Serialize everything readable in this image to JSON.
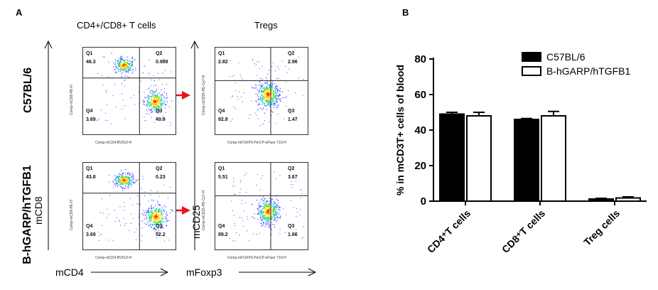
{
  "panelA": {
    "letter": "A",
    "col1_title": "CD4+/CD8+ T cells",
    "col2_title": "Tregs",
    "row1_label": "C57BL/6",
    "row2_label": "B-hGARP/hTGFB1",
    "x_marker_left": "mCD4",
    "x_marker_right": "mFoxp3",
    "y_marker_left": "mCD8",
    "y_marker_right": "mCD25",
    "plots": [
      {
        "xaxis": "Comp-mCD4-BV510-H",
        "yaxis": "Comp-mCD8-PE-H",
        "q1": {
          "label": "Q1",
          "value": "46.3"
        },
        "q2": {
          "label": "Q2",
          "value": "0.989"
        },
        "q3": {
          "label": "Q3",
          "value": "49.9"
        },
        "q4": {
          "label": "Q4",
          "value": "3.69"
        }
      },
      {
        "xaxis": "Comp-mFOXP3-PerCP-eFluor 710-H",
        "yaxis": "Comp-mCD25-PE-Cy7-H",
        "q1": {
          "label": "Q1",
          "value": "2.82"
        },
        "q2": {
          "label": "Q2",
          "value": "2.96"
        },
        "q3": {
          "label": "Q3",
          "value": "1.47"
        },
        "q4": {
          "label": "Q4",
          "value": "92.8"
        }
      },
      {
        "xaxis": "Comp-mCD4-BV510-H",
        "yaxis": "Comp-mCD8-PE-H",
        "q1": {
          "label": "Q1",
          "value": "43.8"
        },
        "q2": {
          "label": "Q2",
          "value": "0.23"
        },
        "q3": {
          "label": "Q3",
          "value": "52.2"
        },
        "q4": {
          "label": "Q4",
          "value": "3.69"
        }
      },
      {
        "xaxis": "Comp-mFOXP3-PerCP-eFluor 710-H",
        "yaxis": "Comp-mCD25-PE-Cy7-H",
        "q1": {
          "label": "Q1",
          "value": "5.51"
        },
        "q2": {
          "label": "Q2",
          "value": "3.67"
        },
        "q3": {
          "label": "Q3",
          "value": "1.66"
        },
        "q4": {
          "label": "Q4",
          "value": "89.2"
        }
      }
    ],
    "arrow_color": "#e8141a"
  },
  "panelB": {
    "letter": "B"
  },
  "chart_data": {
    "type": "bar",
    "categories": [
      "CD4⁺T cells",
      "CD8⁺T cells",
      "Treg cells"
    ],
    "series": [
      {
        "name": "C57BL/6",
        "values": [
          49,
          46,
          1.2
        ],
        "errors": [
          1.0,
          0.5,
          0.4
        ],
        "fill": "#000000"
      },
      {
        "name": "B-hGARP/hTGFB1",
        "values": [
          48,
          48,
          1.8
        ],
        "errors": [
          2.0,
          2.5,
          0.6
        ],
        "fill": "#ffffff"
      }
    ],
    "ylabel": "% in mCD3T+ cells of blood",
    "ylim": [
      0,
      80
    ],
    "yticks": [
      "0",
      "20",
      "40",
      "60",
      "80"
    ],
    "legend_position": "top-right"
  }
}
